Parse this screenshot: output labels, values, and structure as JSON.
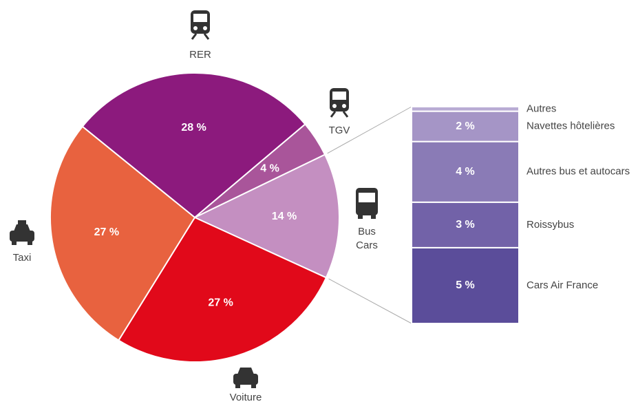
{
  "chart_data": [
    {
      "type": "pie",
      "categories": [
        "RER",
        "TGV",
        "Bus\nCars",
        "Voiture",
        "Taxi"
      ],
      "values": [
        28,
        4,
        14,
        27,
        27
      ],
      "value_labels": [
        "28 %",
        "4 %",
        "14 %",
        "27 %",
        "27 %"
      ],
      "colors": [
        "#8c1a7d",
        "#a9559a",
        "#c48fc1",
        "#e1091a",
        "#e8623f"
      ]
    },
    {
      "type": "stacked-column",
      "categories": [
        "Cars Air France",
        "Roissybus",
        "Autres bus et autocars",
        "Navettes hôtelières",
        "Autres"
      ],
      "values": [
        5,
        3,
        4,
        2,
        0.3
      ],
      "value_labels": [
        "5 %",
        "3 %",
        "4 %",
        "2 %",
        null
      ],
      "colors": [
        "#5b4d9a",
        "#7262a8",
        "#8a7bb6",
        "#a595c6",
        "#b9acd4"
      ]
    }
  ]
}
